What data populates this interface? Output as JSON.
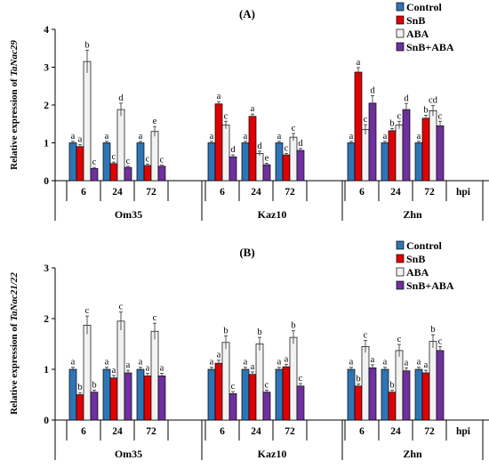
{
  "chart_data": [
    {
      "type": "bar",
      "panel_label": "(A)",
      "ylabel_prefix": "Relative expression of ",
      "ylabel_gene": "TaNac29",
      "ylim": [
        0,
        4
      ],
      "yticks": [
        0,
        1,
        2,
        3,
        4
      ],
      "x_unit": "hpi",
      "cultivars": [
        "Om35",
        "Kaz10",
        "Zhn"
      ],
      "timepoints": [
        "6",
        "24",
        "72"
      ],
      "legend": {
        "placement": "top-right",
        "entries": [
          "Control",
          "SnB",
          "ABA",
          "SnB+ABA"
        ]
      },
      "series": [
        {
          "name": "Control",
          "color": "#2e75b6",
          "values": [
            1.0,
            1.0,
            1.0,
            1.0,
            1.0,
            1.0,
            1.0,
            1.0,
            1.0
          ],
          "errors": [
            0.04,
            0.04,
            0.04,
            0.04,
            0.04,
            0.04,
            0.04,
            0.04,
            0.04
          ],
          "letters": [
            "a",
            "a",
            "a",
            "a",
            "a",
            "a",
            "a",
            "a",
            "a"
          ]
        },
        {
          "name": "SnB",
          "color": "#e00000",
          "values": [
            0.9,
            0.45,
            0.4,
            2.03,
            1.7,
            0.68,
            2.87,
            1.32,
            1.65
          ],
          "errors": [
            0.05,
            0.04,
            0.04,
            0.06,
            0.06,
            0.04,
            0.12,
            0.06,
            0.08
          ],
          "letters": [
            "a",
            "c",
            "c",
            "a",
            "a",
            "c",
            "a",
            "b",
            "b"
          ]
        },
        {
          "name": "ABA",
          "color": "#f2f2f2",
          "values": [
            3.15,
            1.88,
            1.3,
            1.47,
            0.72,
            1.15,
            1.35,
            1.47,
            1.85
          ],
          "errors": [
            0.3,
            0.17,
            0.13,
            0.1,
            0.06,
            0.1,
            0.13,
            0.1,
            0.14
          ],
          "letters": [
            "b",
            "d",
            "e",
            "c",
            "d",
            "c",
            "c",
            "c",
            "cd"
          ]
        },
        {
          "name": "SnB+ABA",
          "color": "#7030a0",
          "values": [
            0.32,
            0.35,
            0.38,
            0.63,
            0.42,
            0.8,
            2.05,
            1.88,
            1.45
          ],
          "errors": [
            0.03,
            0.03,
            0.03,
            0.05,
            0.04,
            0.05,
            0.2,
            0.16,
            0.12
          ],
          "letters": [
            "c",
            "c",
            "c",
            "d",
            "e",
            "d",
            "d",
            "d",
            "c"
          ]
        }
      ]
    },
    {
      "type": "bar",
      "panel_label": "(B)",
      "ylabel_prefix": "Relative expression of ",
      "ylabel_gene": "TaNac21/22",
      "ylim": [
        0,
        3
      ],
      "yticks": [
        0,
        1,
        2,
        3
      ],
      "x_unit": "hpi",
      "cultivars": [
        "Om35",
        "Kaz10",
        "Zhn"
      ],
      "timepoints": [
        "6",
        "24",
        "72"
      ],
      "legend": {
        "placement": "top-right",
        "entries": [
          "Control",
          "SnB",
          "ABA",
          "SnB+ABA"
        ]
      },
      "series": [
        {
          "name": "Control",
          "color": "#2e75b6",
          "values": [
            1.0,
            1.0,
            1.0,
            1.0,
            1.0,
            1.0,
            1.0,
            1.0,
            1.0
          ],
          "errors": [
            0.04,
            0.04,
            0.04,
            0.04,
            0.04,
            0.04,
            0.04,
            0.04,
            0.04
          ],
          "letters": [
            "a",
            "a",
            "a",
            "a",
            "a",
            "a",
            "a",
            "a",
            "a"
          ]
        },
        {
          "name": "SnB",
          "color": "#e00000",
          "values": [
            0.5,
            0.83,
            0.87,
            1.12,
            0.9,
            1.05,
            0.67,
            0.55,
            0.93
          ],
          "errors": [
            0.04,
            0.05,
            0.05,
            0.06,
            0.05,
            0.05,
            0.04,
            0.04,
            0.05
          ],
          "letters": [
            "b",
            "a",
            "a",
            "a",
            "a",
            "a",
            "b",
            "b",
            "a"
          ]
        },
        {
          "name": "ABA",
          "color": "#f2f2f2",
          "values": [
            1.87,
            1.95,
            1.75,
            1.53,
            1.5,
            1.63,
            1.45,
            1.37,
            1.55
          ],
          "errors": [
            0.18,
            0.18,
            0.16,
            0.13,
            0.13,
            0.13,
            0.12,
            0.12,
            0.13
          ],
          "letters": [
            "c",
            "c",
            "c",
            "b",
            "b",
            "b",
            "c",
            "c",
            "b"
          ]
        },
        {
          "name": "SnB+ABA",
          "color": "#7030a0",
          "values": [
            0.55,
            0.93,
            0.87,
            0.52,
            0.55,
            0.67,
            1.03,
            0.97,
            1.37
          ],
          "errors": [
            0.04,
            0.05,
            0.05,
            0.04,
            0.04,
            0.05,
            0.06,
            0.06,
            0.08
          ],
          "letters": [
            "b",
            "a",
            "a",
            "c",
            "c",
            "c",
            "a",
            "a",
            "c"
          ]
        }
      ]
    }
  ]
}
